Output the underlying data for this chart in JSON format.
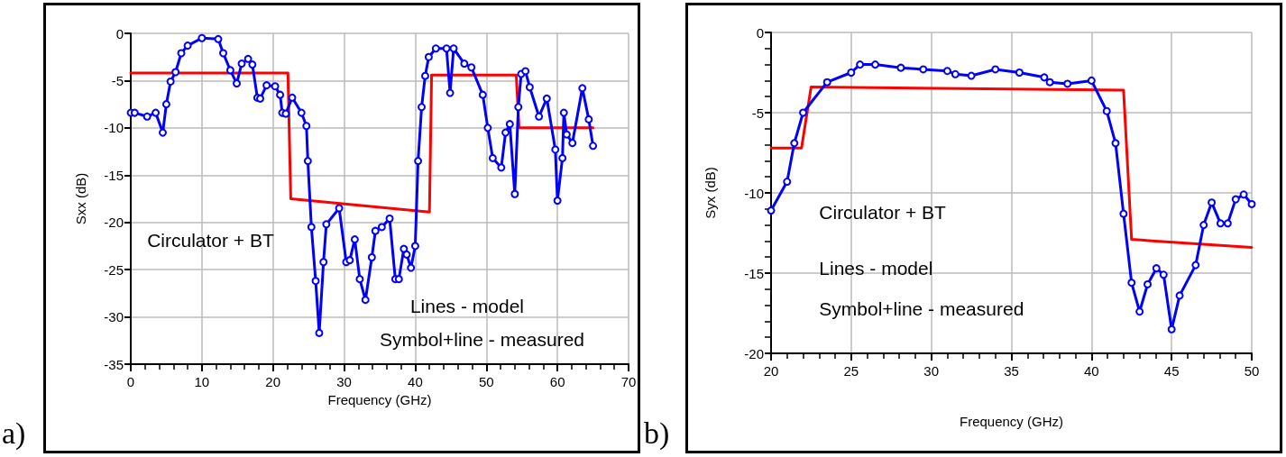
{
  "chart_data": [
    {
      "type": "line",
      "xlabel": "Frequency (GHz)",
      "ylabel": "Sxx (dB)",
      "xlim": [
        0,
        70
      ],
      "xticks": [
        0,
        10,
        20,
        30,
        40,
        50,
        60,
        70
      ],
      "ylim": [
        -35,
        0
      ],
      "yticks": [
        -35,
        -30,
        -25,
        -20,
        -15,
        -10,
        -5,
        0
      ],
      "grid": true,
      "annotations": [
        "a)",
        "Circulator + BT",
        "Lines - model",
        "Symbol+line - measured"
      ],
      "series": [
        {
          "color": "#ff0000",
          "marker": "none",
          "line_style": "solid",
          "x": [
            0,
            22.1,
            22.5,
            42,
            42.3,
            54.2,
            54.6,
            65
          ],
          "values": [
            -4.2,
            -4.2,
            -17.5,
            -18.9,
            -4.4,
            -4.4,
            -10,
            -10
          ]
        },
        {
          "color": "#0000ff",
          "marker": "circle",
          "line_style": "solid",
          "x": [
            0,
            0.55,
            2.3,
            3.5,
            4.5,
            5.0,
            5.6,
            6.3,
            7.1,
            8.0,
            10,
            12.3,
            13,
            14,
            14.9,
            15.6,
            16.5,
            17.1,
            17.8,
            18.2,
            19.1,
            20.3,
            21,
            21.3,
            21.8,
            22.7,
            24,
            24.7,
            24.9,
            25.4,
            26,
            26.5,
            27.1,
            27.5,
            29.3,
            30.3,
            30.8,
            31.5,
            32.2,
            33,
            33.9,
            34.4,
            35.3,
            36.4,
            37.2,
            37.7,
            38.4,
            38.8,
            39.4,
            40,
            40.4,
            40.9,
            41.4,
            41.9,
            42.9,
            44.4,
            44.9,
            45.4,
            46.9,
            47.9,
            49.5,
            50.2,
            50.9,
            52.1,
            52.7,
            53.3,
            54,
            54.5,
            54.9,
            55.5,
            56.1,
            57.4,
            58.5,
            59.7,
            60,
            60.7,
            60.9,
            61.3,
            62.1,
            63.5,
            64.4,
            65
          ],
          "values": [
            -8.4,
            -8.4,
            -8.8,
            -8.4,
            -10.5,
            -7.5,
            -5.1,
            -4.1,
            -2.1,
            -1.3,
            -0.5,
            -0.6,
            -2.1,
            -3.9,
            -5.3,
            -3.2,
            -2.7,
            -3.3,
            -6.8,
            -6.9,
            -5.5,
            -5.6,
            -6.5,
            -8.4,
            -8.5,
            -6.8,
            -8.4,
            -9.8,
            -13.5,
            -20.5,
            -26.2,
            -31.7,
            -24.2,
            -20.2,
            -18.5,
            -24.2,
            -24,
            -21.8,
            -26,
            -28.2,
            -23.7,
            -20.9,
            -20.5,
            -19.6,
            -26,
            -26,
            -22.8,
            -23.4,
            -24.8,
            -22.5,
            -13.5,
            -7.8,
            -4.5,
            -2.5,
            -1.6,
            -1.6,
            -6.3,
            -1.6,
            -3.2,
            -3.6,
            -6.5,
            -10,
            -13.2,
            -14.2,
            -10.5,
            -9.6,
            -17,
            -7.8,
            -4.3,
            -4,
            -5.7,
            -8.8,
            -6.9,
            -12.3,
            -17.7,
            -13.2,
            -8.4,
            -10.7,
            -11.6,
            -5.8,
            -9.1,
            -11.9
          ]
        }
      ]
    },
    {
      "type": "line",
      "xlabel": "Frequency (GHz)",
      "ylabel": "Syx (dB)",
      "xlim": [
        20,
        50
      ],
      "xticks": [
        20,
        25,
        30,
        35,
        40,
        45,
        50
      ],
      "ylim": [
        -20,
        0
      ],
      "yticks": [
        -20,
        -15,
        -10,
        -5,
        0
      ],
      "grid": true,
      "annotations": [
        "b)",
        "Circulator + BT",
        "Lines - model",
        "Symbol+line - measured"
      ],
      "series": [
        {
          "color": "#ff0000",
          "marker": "none",
          "line_style": "solid",
          "x": [
            20,
            21.9,
            22.5,
            42,
            42.5,
            50
          ],
          "values": [
            -7.2,
            -7.2,
            -3.4,
            -3.6,
            -12.9,
            -13.4
          ]
        },
        {
          "color": "#0000ff",
          "marker": "circle",
          "line_style": "solid",
          "x": [
            20,
            21,
            21.45,
            22,
            23.5,
            25,
            25.55,
            26.5,
            28.1,
            29.5,
            31,
            31.5,
            32.5,
            34,
            35.5,
            37.05,
            37.4,
            38.5,
            40,
            40.95,
            41.5,
            42,
            42.5,
            43,
            43.5,
            44.05,
            44.5,
            45,
            45.5,
            46.5,
            47,
            47.5,
            48.05,
            48.5,
            49,
            49.5,
            50
          ],
          "values": [
            -11.1,
            -9.3,
            -6.9,
            -5,
            -3.1,
            -2.5,
            -2,
            -2,
            -2.2,
            -2.3,
            -2.4,
            -2.6,
            -2.7,
            -2.3,
            -2.5,
            -2.8,
            -3.1,
            -3.2,
            -3,
            -4.9,
            -6.9,
            -11.3,
            -15.6,
            -17.4,
            -15.7,
            -14.7,
            -15.1,
            -18.5,
            -16.4,
            -14.5,
            -12,
            -10.6,
            -11.9,
            -11.9,
            -10.4,
            -10.1,
            -10.7
          ]
        }
      ]
    }
  ]
}
